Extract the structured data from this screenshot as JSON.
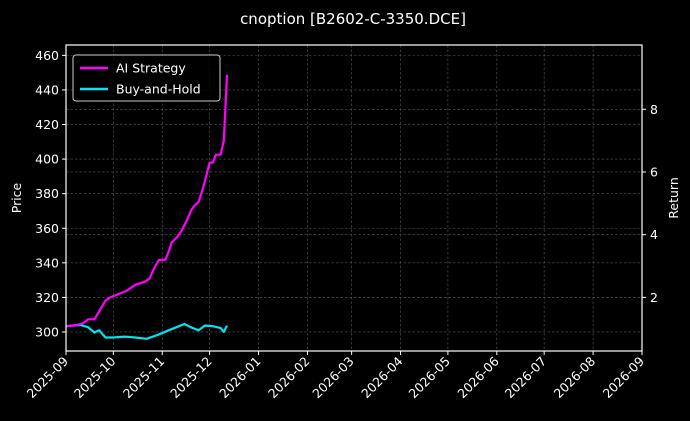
{
  "chart_data": {
    "type": "line",
    "title": "cnoption [B2602-C-3350.DCE]",
    "xlabel": "",
    "ylabel": "Price",
    "y2label": "Return",
    "grid": true,
    "legend_position": "upper left",
    "xlim": [
      "2025-09",
      "2026-09"
    ],
    "ylim": [
      289,
      466
    ],
    "y2lim": [
      0.29,
      10.05
    ],
    "x_ticks": [
      "2025-09",
      "2025-10",
      "2025-11",
      "2025-12",
      "2026-01",
      "2026-02",
      "2026-03",
      "2026-04",
      "2026-05",
      "2026-06",
      "2026-07",
      "2026-08",
      "2026-09"
    ],
    "y_ticks": [
      300,
      320,
      340,
      360,
      380,
      400,
      420,
      440,
      460
    ],
    "y2_ticks": [
      2,
      4,
      6,
      8
    ],
    "series": [
      {
        "name": "AI Strategy",
        "color": "#ff00ff",
        "axis": "right",
        "x": [
          "2025-09-01",
          "2025-09-08",
          "2025-09-12",
          "2025-09-15",
          "2025-09-19",
          "2025-09-22",
          "2025-09-26",
          "2025-09-29",
          "2025-10-09",
          "2025-10-15",
          "2025-10-21",
          "2025-10-24",
          "2025-10-27",
          "2025-10-30",
          "2025-11-03",
          "2025-11-05",
          "2025-11-07",
          "2025-11-10",
          "2025-11-13",
          "2025-11-17",
          "2025-11-19",
          "2025-11-21",
          "2025-11-24",
          "2025-11-26",
          "2025-11-28",
          "2025-12-01",
          "2025-12-03",
          "2025-12-05",
          "2025-12-08",
          "2025-12-10",
          "2025-12-12"
        ],
        "values": [
          1.08,
          1.12,
          1.18,
          1.3,
          1.3,
          1.55,
          1.9,
          2.0,
          2.2,
          2.4,
          2.5,
          2.6,
          2.95,
          3.2,
          3.2,
          3.45,
          3.75,
          3.9,
          4.1,
          4.5,
          4.75,
          4.9,
          5.05,
          5.35,
          5.7,
          6.3,
          6.3,
          6.55,
          6.55,
          7.0,
          9.1
        ]
      },
      {
        "name": "Buy-and-Hold",
        "color": "#00e5ee",
        "axis": "right",
        "x": [
          "2025-09-01",
          "2025-09-05",
          "2025-09-10",
          "2025-09-15",
          "2025-09-19",
          "2025-09-22",
          "2025-09-26",
          "2025-10-01",
          "2025-10-08",
          "2025-10-15",
          "2025-10-22",
          "2025-10-29",
          "2025-11-05",
          "2025-11-10",
          "2025-11-15",
          "2025-11-19",
          "2025-11-24",
          "2025-11-28",
          "2025-12-03",
          "2025-12-08",
          "2025-12-10",
          "2025-12-12"
        ],
        "values": [
          1.08,
          1.1,
          1.12,
          1.05,
          0.88,
          0.95,
          0.72,
          0.72,
          0.75,
          0.72,
          0.68,
          0.8,
          0.95,
          1.05,
          1.15,
          1.05,
          0.95,
          1.1,
          1.08,
          1.02,
          0.9,
          1.1
        ]
      }
    ]
  },
  "legend": {
    "items": [
      {
        "label": "AI Strategy",
        "color": "#ff00ff"
      },
      {
        "label": "Buy-and-Hold",
        "color": "#00e5ee"
      }
    ]
  }
}
